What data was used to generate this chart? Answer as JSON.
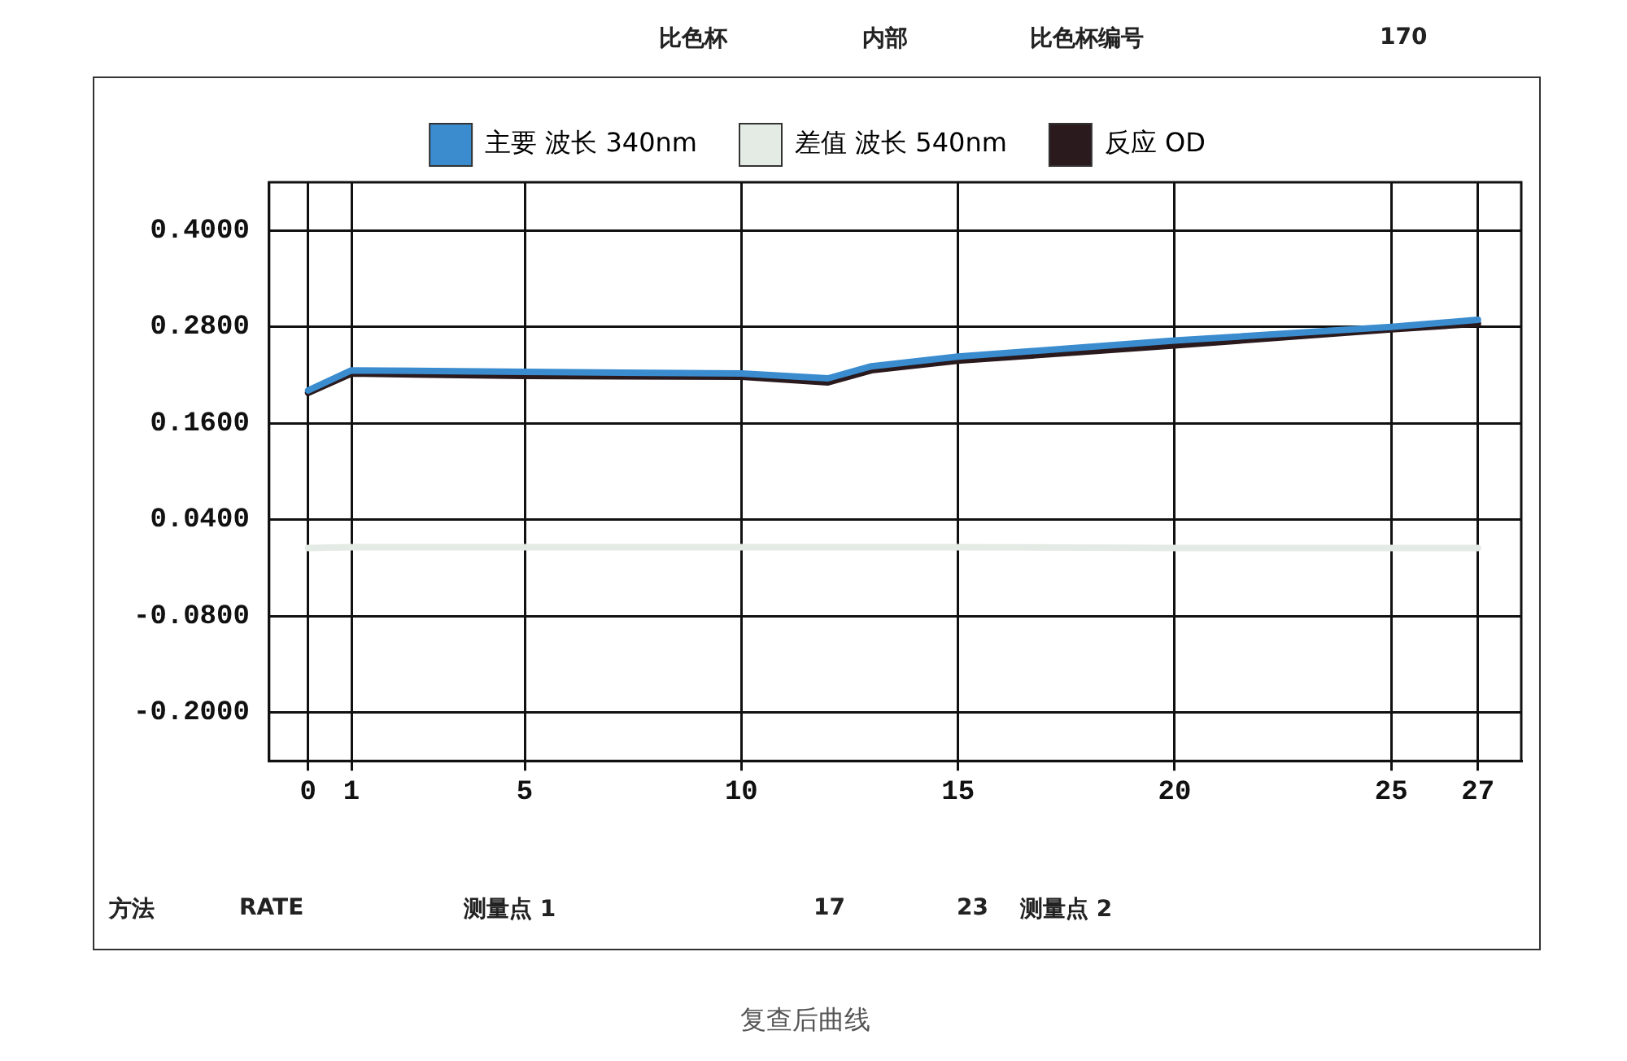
{
  "chart_data": {
    "type": "line",
    "x": [
      0,
      1,
      5,
      10,
      12,
      13,
      15,
      20,
      25,
      27
    ],
    "series": [
      {
        "name": "主要 波长 340nm",
        "color": "#3a8ccf",
        "values": [
          0.201,
          0.226,
          0.224,
          0.222,
          0.216,
          0.231,
          0.243,
          0.263,
          0.28,
          0.289
        ]
      },
      {
        "name": "差值 波长 540nm",
        "color": "#e4eae4",
        "values": [
          0.005,
          0.006,
          0.006,
          0.006,
          0.006,
          0.006,
          0.006,
          0.005,
          0.005,
          0.005
        ]
      },
      {
        "name": "反应 OD",
        "color": "#2a1a1e",
        "values": [
          0.198,
          0.222,
          0.219,
          0.218,
          0.211,
          0.226,
          0.238,
          0.257,
          0.277,
          0.284
        ]
      }
    ],
    "xlim": [
      -0.9,
      28
    ],
    "xticks": [
      0,
      1,
      5,
      10,
      15,
      20,
      25,
      27
    ],
    "ylim": [
      -0.26,
      0.46
    ],
    "yticks": [
      {
        "value": -0.2,
        "label": "-0.2000"
      },
      {
        "value": -0.08,
        "label": "-0.0800"
      },
      {
        "value": 0.04,
        "label": "0.0400"
      },
      {
        "value": 0.16,
        "label": "0.1600"
      },
      {
        "value": 0.28,
        "label": "0.2800"
      },
      {
        "value": 0.4,
        "label": "0.4000"
      }
    ],
    "grid": true,
    "legend": "top",
    "marker": "none",
    "line_style": "solid",
    "annotations": [
      "比色杯",
      "内部",
      "比色杯编号",
      "170",
      "方法",
      "RATE",
      "测量点 1",
      "17",
      "23",
      "测量点 2",
      "复查后曲线"
    ]
  }
}
